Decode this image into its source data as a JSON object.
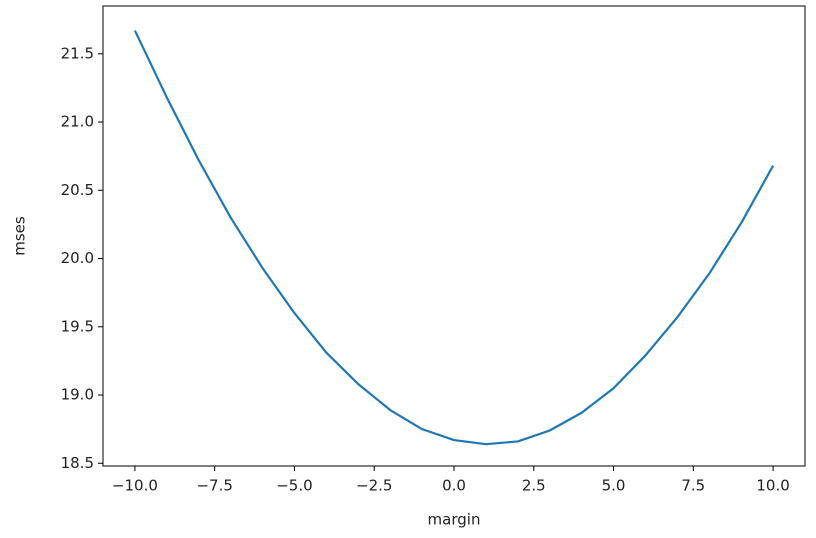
{
  "chart_data": {
    "type": "line",
    "x_label": "margin",
    "y_label": "mses",
    "x": [
      -10,
      -9,
      -8,
      -7,
      -6,
      -5,
      -4,
      -3,
      -2,
      -1,
      0,
      1,
      2,
      3,
      4,
      5,
      6,
      7,
      8,
      9,
      10
    ],
    "values": [
      21.67,
      21.18,
      20.72,
      20.3,
      19.93,
      19.6,
      19.31,
      19.08,
      18.89,
      18.75,
      18.67,
      18.64,
      18.66,
      18.74,
      18.87,
      19.05,
      19.29,
      19.57,
      19.89,
      20.26,
      20.68
    ],
    "color": "#1f77b4",
    "xlim": [
      -11,
      11
    ],
    "xticks": [
      {
        "value": -10,
        "label": "−10.0"
      },
      {
        "value": -7.5,
        "label": "−7.5"
      },
      {
        "value": -5,
        "label": "−5.0"
      },
      {
        "value": -2.5,
        "label": "−2.5"
      },
      {
        "value": 0,
        "label": "0.0"
      },
      {
        "value": 2.5,
        "label": "2.5"
      },
      {
        "value": 5,
        "label": "5.0"
      },
      {
        "value": 7.5,
        "label": "7.5"
      },
      {
        "value": 10,
        "label": "10.0"
      }
    ],
    "ylim": [
      18.48,
      21.85
    ],
    "yticks": [
      18.5,
      {
        "value": 19,
        "label": "19.0"
      },
      19.5,
      {
        "value": 20,
        "label": "20.0"
      },
      20.5,
      {
        "value": 21,
        "label": "21.0"
      },
      21.5
    ],
    "grid": false
  }
}
